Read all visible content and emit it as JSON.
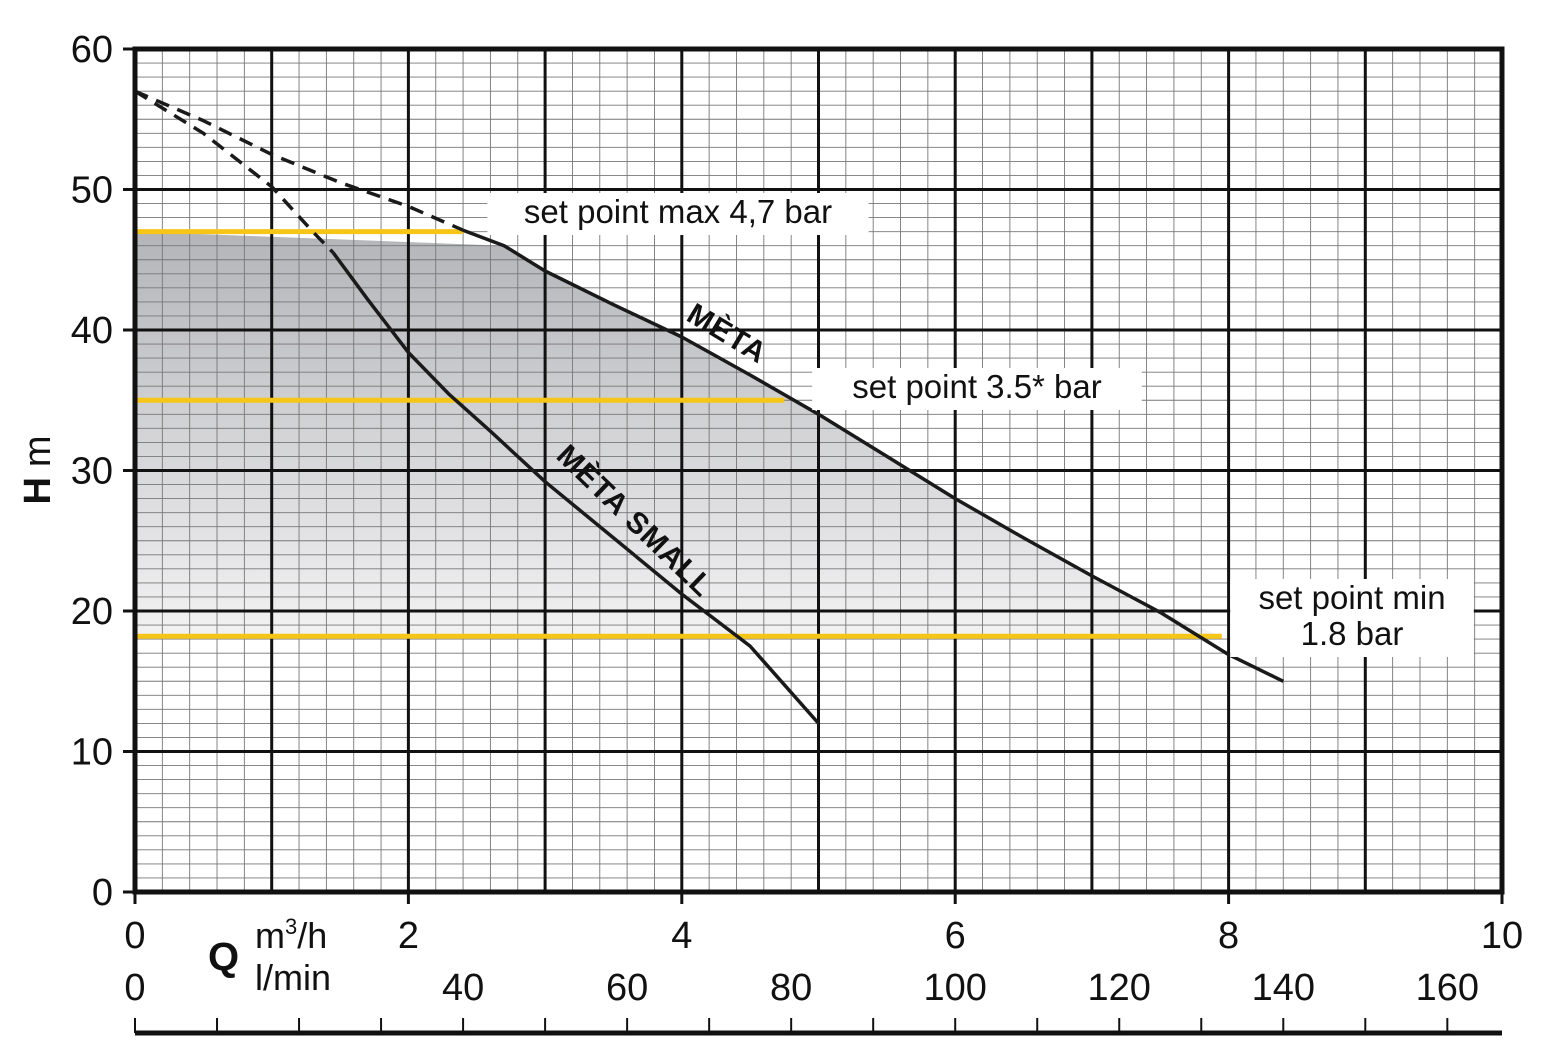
{
  "chart_data": {
    "type": "line",
    "title": "",
    "xlabel": "Q",
    "x_unit_primary": "m³/h",
    "x_unit_primary_base": "m",
    "x_unit_primary_sup": "3",
    "x_unit_primary_tail": "/h",
    "x_unit_secondary": "l/min",
    "ylabel": "H",
    "y_unit": "m",
    "xlim": [
      0,
      10
    ],
    "ylim": [
      0,
      60
    ],
    "grid": true,
    "x_ticks": [
      "0",
      "2",
      "4",
      "6",
      "8",
      "10"
    ],
    "x_ticks_values": [
      0,
      2,
      4,
      6,
      8,
      10
    ],
    "x2_ticks": [
      "0",
      "40",
      "60",
      "80",
      "100",
      "120",
      "140",
      "160"
    ],
    "x2_ticks_values": [
      0,
      40,
      60,
      80,
      100,
      120,
      140,
      160
    ],
    "y_ticks": [
      "0",
      "10",
      "20",
      "30",
      "40",
      "50",
      "60"
    ],
    "y_ticks_values": [
      0,
      10,
      20,
      30,
      40,
      50,
      60
    ],
    "series": [
      {
        "name": "MÈTA",
        "color": "#1a1a1a",
        "dashed_points": [
          [
            0,
            57
          ],
          [
            0.5,
            54.9
          ],
          [
            1,
            52.5
          ],
          [
            1.5,
            50.5
          ],
          [
            2,
            48.8
          ],
          [
            2.4,
            47.1
          ]
        ],
        "points": [
          [
            2.4,
            47.1
          ],
          [
            2.7,
            46
          ],
          [
            3,
            44.2
          ],
          [
            3.5,
            41.8
          ],
          [
            4,
            39.5
          ],
          [
            4.5,
            36.8
          ],
          [
            5,
            34
          ],
          [
            5.5,
            31
          ],
          [
            6,
            28
          ],
          [
            6.5,
            25.2
          ],
          [
            7,
            22.5
          ],
          [
            7.5,
            19.9
          ],
          [
            8,
            16.9
          ],
          [
            8.4,
            15
          ]
        ]
      },
      {
        "name": "MÈTA SMALL",
        "color": "#1a1a1a",
        "dashed_points": [
          [
            0,
            57
          ],
          [
            0.5,
            54
          ],
          [
            1,
            50.2
          ],
          [
            1.3,
            47
          ],
          [
            1.45,
            45.5
          ]
        ],
        "points": [
          [
            1.45,
            45.5
          ],
          [
            1.7,
            42.2
          ],
          [
            2,
            38.4
          ],
          [
            2.3,
            35.4
          ],
          [
            2.6,
            32.8
          ],
          [
            3,
            29.2
          ],
          [
            3.5,
            25.2
          ],
          [
            4,
            21.2
          ],
          [
            4.5,
            17.5
          ],
          [
            5,
            12
          ]
        ]
      }
    ],
    "set_points": [
      {
        "label": "set point max 4,7 bar",
        "label_lines": [
          "set point max 4,7 bar"
        ],
        "h": 47,
        "q_end": 2.4,
        "color": "#f5c518"
      },
      {
        "label": "set point 3.5* bar",
        "label_lines": [
          "set point 3.5* bar"
        ],
        "h": 35,
        "q_end": 4.75,
        "color": "#f5c518"
      },
      {
        "label": "set point min 1.8 bar",
        "label_lines": [
          "set point min",
          "1.8 bar"
        ],
        "h": 18.2,
        "q_end": 7.95,
        "color": "#f5c518"
      }
    ],
    "shaded_region": {
      "description": "operating range between set point min and max under MÈTA curve",
      "colors": [
        "#b4b5b9",
        "#f2f2f3"
      ]
    }
  }
}
